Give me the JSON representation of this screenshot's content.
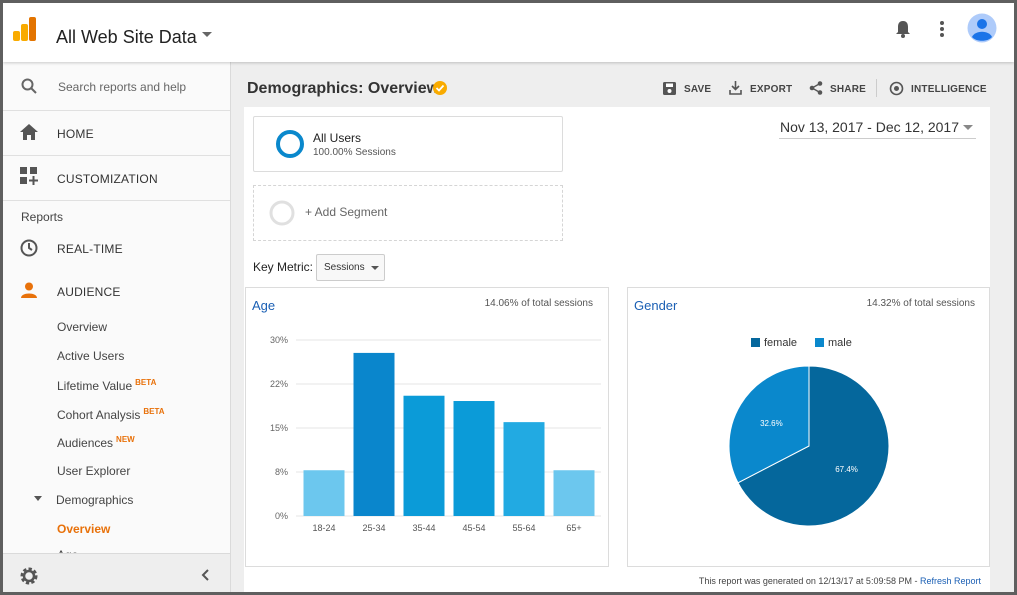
{
  "header": {
    "title": "All Web Site Data"
  },
  "sidebar": {
    "search": "Search reports and help",
    "nav": [
      "HOME",
      "CUSTOMIZATION"
    ],
    "section": "Reports",
    "reports": [
      "REAL-TIME",
      "AUDIENCE"
    ],
    "audience": [
      {
        "label": "Overview"
      },
      {
        "label": "Active Users"
      },
      {
        "label": "Lifetime Value",
        "badge": "BETA"
      },
      {
        "label": "Cohort Analysis",
        "badge": "BETA"
      },
      {
        "label": "Audiences",
        "badge": "NEW"
      },
      {
        "label": "User Explorer"
      },
      {
        "label": "Demographics"
      }
    ],
    "demographics": [
      "Overview",
      "Age"
    ]
  },
  "main": {
    "title": "Demographics: Overview",
    "actions": [
      "SAVE",
      "EXPORT",
      "SHARE",
      "INTELLIGENCE"
    ],
    "segment": {
      "name": "All Users",
      "detail": "100.00% Sessions"
    },
    "add_segment": "+ Add Segment",
    "date_range": "Nov 13, 2017 - Dec 12, 2017",
    "key_metric": {
      "label": "Key Metric:",
      "value": "Sessions"
    },
    "footer": {
      "text": "This report was generated on 12/13/17 at 5:09:58 PM - ",
      "link": "Refresh Report"
    }
  },
  "chart_data": [
    {
      "type": "bar",
      "title": "Age",
      "subtitle": "14.06% of total sessions",
      "categories": [
        "18-24",
        "25-34",
        "35-44",
        "45-54",
        "55-64",
        "65+"
      ],
      "values": [
        7.8,
        27.8,
        20.5,
        19.6,
        16.0,
        7.8
      ],
      "colors": [
        "#6cc7ee",
        "#0a86cc",
        "#0b9bd8",
        "#0b9bd8",
        "#22aae2",
        "#6cc7ee"
      ],
      "ylim": [
        0,
        30
      ],
      "yticks": [
        {
          "value": 0,
          "label": "0%"
        },
        {
          "value": 7.5,
          "label": "8%"
        },
        {
          "value": 15,
          "label": "15%"
        },
        {
          "value": 22.5,
          "label": "22%"
        },
        {
          "value": 30,
          "label": "30%"
        }
      ],
      "grid": true
    },
    {
      "type": "pie",
      "title": "Gender",
      "subtitle": "14.32% of total sessions",
      "categories": [
        "female",
        "male"
      ],
      "values": [
        67.4,
        32.6
      ],
      "value_labels": [
        "67.4%",
        "32.6%"
      ],
      "colors": [
        "#05679c",
        "#0a88cc"
      ],
      "legend": "top"
    }
  ]
}
